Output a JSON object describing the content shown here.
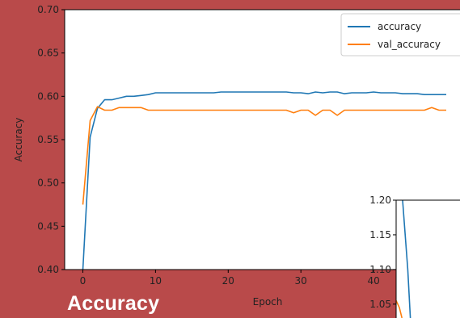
{
  "caption": "Accuracy",
  "chart_data": [
    {
      "type": "line",
      "xlabel": "Epoch",
      "ylabel": "Accuracy",
      "xlim": [
        -2.5,
        52
      ],
      "ylim": [
        0.4,
        0.7
      ],
      "xticks": [
        0,
        10,
        20,
        30,
        40
      ],
      "yticks": [
        0.4,
        0.45,
        0.5,
        0.55,
        0.6,
        0.65,
        0.7
      ],
      "grid": false,
      "legend_position": "top-right",
      "series": [
        {
          "name": "accuracy",
          "color": "#1f77b4",
          "x": [
            0,
            1,
            2,
            3,
            4,
            5,
            6,
            7,
            8,
            9,
            10,
            11,
            12,
            13,
            14,
            15,
            16,
            17,
            18,
            19,
            20,
            21,
            22,
            23,
            24,
            25,
            26,
            27,
            28,
            29,
            30,
            31,
            32,
            33,
            34,
            35,
            36,
            37,
            38,
            39,
            40,
            41,
            42,
            43,
            44,
            45,
            46,
            47,
            48,
            49,
            50
          ],
          "y": [
            0.4,
            0.553,
            0.586,
            0.596,
            0.596,
            0.598,
            0.6,
            0.6,
            0.601,
            0.602,
            0.604,
            0.604,
            0.604,
            0.604,
            0.604,
            0.604,
            0.604,
            0.604,
            0.604,
            0.605,
            0.605,
            0.605,
            0.605,
            0.605,
            0.605,
            0.605,
            0.605,
            0.605,
            0.605,
            0.604,
            0.604,
            0.603,
            0.605,
            0.604,
            0.605,
            0.605,
            0.603,
            0.604,
            0.604,
            0.604,
            0.605,
            0.604,
            0.604,
            0.604,
            0.603,
            0.603,
            0.603,
            0.602,
            0.602,
            0.602,
            0.602
          ]
        },
        {
          "name": "val_accuracy",
          "color": "#ff7f0e",
          "x": [
            0,
            1,
            2,
            3,
            4,
            5,
            6,
            7,
            8,
            9,
            10,
            11,
            12,
            13,
            14,
            15,
            16,
            17,
            18,
            19,
            20,
            21,
            22,
            23,
            24,
            25,
            26,
            27,
            28,
            29,
            30,
            31,
            32,
            33,
            34,
            35,
            36,
            37,
            38,
            39,
            40,
            41,
            42,
            43,
            44,
            45,
            46,
            47,
            48,
            49,
            50
          ],
          "y": [
            0.475,
            0.572,
            0.588,
            0.584,
            0.584,
            0.587,
            0.587,
            0.587,
            0.587,
            0.584,
            0.584,
            0.584,
            0.584,
            0.584,
            0.584,
            0.584,
            0.584,
            0.584,
            0.584,
            0.584,
            0.584,
            0.584,
            0.584,
            0.584,
            0.584,
            0.584,
            0.584,
            0.584,
            0.584,
            0.581,
            0.584,
            0.584,
            0.578,
            0.584,
            0.584,
            0.578,
            0.584,
            0.584,
            0.584,
            0.584,
            0.584,
            0.584,
            0.584,
            0.584,
            0.584,
            0.584,
            0.584,
            0.584,
            0.587,
            0.584,
            0.584
          ]
        }
      ]
    },
    {
      "type": "line",
      "ylim": [
        1.03,
        1.2
      ],
      "yticks": [
        1.05,
        1.1,
        1.15,
        1.2
      ],
      "grid": false,
      "series": [
        {
          "color": "#1f77b4",
          "x": [
            0.1,
            0.18,
            0.22
          ],
          "y": [
            1.2,
            1.1,
            1.03
          ]
        },
        {
          "color": "#ff7f0e",
          "x": [
            0.0,
            0.05,
            0.09
          ],
          "y": [
            1.055,
            1.045,
            1.03
          ]
        }
      ]
    }
  ]
}
